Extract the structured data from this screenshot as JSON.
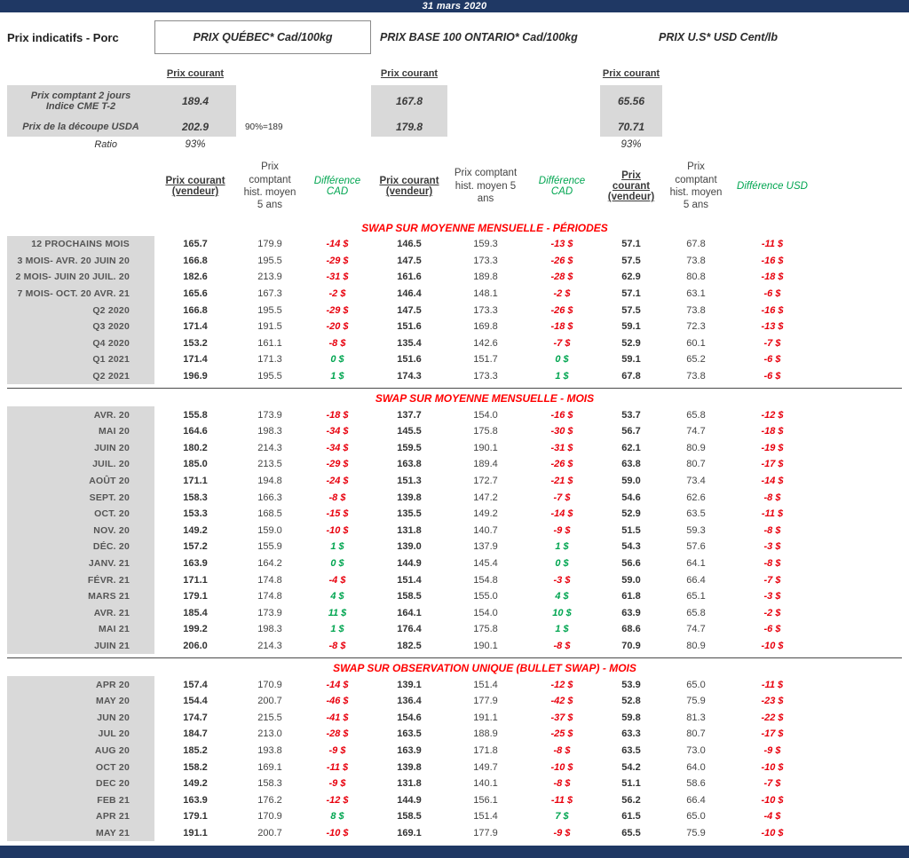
{
  "header": {
    "date": "31 mars 2020"
  },
  "title": "Prix indicatifs - Porc",
  "groups": [
    {
      "title": "PRIX QUÉBEC* Cad/100kg"
    },
    {
      "title": "PRIX BASE 100 ONTARIO* Cad/100kg"
    },
    {
      "title": "PRIX U.S* USD Cent/lb"
    }
  ],
  "labels": {
    "prix_courant": "Prix courant",
    "col_vendeur": "Prix courant (vendeur)",
    "col_hist": "Prix comptant hist. moyen 5 ans",
    "col_diff_cad": "Différence CAD",
    "col_diff_usd": "Différence USD"
  },
  "spot": {
    "rows": [
      {
        "label_line1": "Prix comptant 2 jours",
        "label_line2": "Indice CME T-2",
        "qc": "189.4",
        "on": "167.8",
        "us": "65.56"
      },
      {
        "label": "Prix de la découpe USDA",
        "qc": "202.9",
        "note": "90%=189",
        "on": "179.8",
        "us": "70.71"
      },
      {
        "label": "Ratio",
        "qc": "93%",
        "us": "93%"
      }
    ]
  },
  "colors": {
    "navy_bar": "#1F3864",
    "negative_red": "#E8000D",
    "positive_green": "#00A550",
    "section_title_red": "#FF0000",
    "cell_gray": "#D9D9D9"
  },
  "sections": [
    {
      "title": "SWAP SUR MOYENNE MENSUELLE - PÉRIODES",
      "divider": false,
      "rows": [
        {
          "label": "12 PROCHAINS MOIS",
          "values": [
            "165.7",
            "179.9",
            "-14 $",
            "146.5",
            "159.3",
            "-13 $",
            "57.1",
            "67.8",
            "-11 $"
          ]
        },
        {
          "label": "3 MOIS- AVR. 20 JUIN 20",
          "values": [
            "166.8",
            "195.5",
            "-29 $",
            "147.5",
            "173.3",
            "-26 $",
            "57.5",
            "73.8",
            "-16 $"
          ]
        },
        {
          "label": "2 MOIS- JUIN 20 JUIL. 20",
          "values": [
            "182.6",
            "213.9",
            "-31 $",
            "161.6",
            "189.8",
            "-28 $",
            "62.9",
            "80.8",
            "-18 $"
          ]
        },
        {
          "label": "7 MOIS- OCT. 20 AVR. 21",
          "values": [
            "165.6",
            "167.3",
            "-2 $",
            "146.4",
            "148.1",
            "-2 $",
            "57.1",
            "63.1",
            "-6 $"
          ]
        },
        {
          "label": "Q2 2020",
          "values": [
            "166.8",
            "195.5",
            "-29 $",
            "147.5",
            "173.3",
            "-26 $",
            "57.5",
            "73.8",
            "-16 $"
          ]
        },
        {
          "label": "Q3 2020",
          "values": [
            "171.4",
            "191.5",
            "-20 $",
            "151.6",
            "169.8",
            "-18 $",
            "59.1",
            "72.3",
            "-13 $"
          ]
        },
        {
          "label": "Q4 2020",
          "values": [
            "153.2",
            "161.1",
            "-8 $",
            "135.4",
            "142.6",
            "-7 $",
            "52.9",
            "60.1",
            "-7 $"
          ]
        },
        {
          "label": "Q1 2021",
          "values": [
            "171.4",
            "171.3",
            "0 $",
            "151.6",
            "151.7",
            "0 $",
            "59.1",
            "65.2",
            "-6 $"
          ]
        },
        {
          "label": "Q2 2021",
          "values": [
            "196.9",
            "195.5",
            "1 $",
            "174.3",
            "173.3",
            "1 $",
            "67.8",
            "73.8",
            "-6 $"
          ]
        }
      ]
    },
    {
      "title": "SWAP SUR MOYENNE MENSUELLE - MOIS",
      "divider": true,
      "rows": [
        {
          "label": "AVR. 20",
          "values": [
            "155.8",
            "173.9",
            "-18 $",
            "137.7",
            "154.0",
            "-16 $",
            "53.7",
            "65.8",
            "-12 $"
          ]
        },
        {
          "label": "MAI 20",
          "values": [
            "164.6",
            "198.3",
            "-34 $",
            "145.5",
            "175.8",
            "-30 $",
            "56.7",
            "74.7",
            "-18 $"
          ]
        },
        {
          "label": "JUIN 20",
          "values": [
            "180.2",
            "214.3",
            "-34 $",
            "159.5",
            "190.1",
            "-31 $",
            "62.1",
            "80.9",
            "-19 $"
          ]
        },
        {
          "label": "JUIL. 20",
          "values": [
            "185.0",
            "213.5",
            "-29 $",
            "163.8",
            "189.4",
            "-26 $",
            "63.8",
            "80.7",
            "-17 $"
          ]
        },
        {
          "label": "AOÛT 20",
          "values": [
            "171.1",
            "194.8",
            "-24 $",
            "151.3",
            "172.7",
            "-21 $",
            "59.0",
            "73.4",
            "-14 $"
          ]
        },
        {
          "label": "SEPT. 20",
          "values": [
            "158.3",
            "166.3",
            "-8 $",
            "139.8",
            "147.2",
            "-7 $",
            "54.6",
            "62.6",
            "-8 $"
          ]
        },
        {
          "label": "OCT. 20",
          "values": [
            "153.3",
            "168.5",
            "-15 $",
            "135.5",
            "149.2",
            "-14 $",
            "52.9",
            "63.5",
            "-11 $"
          ]
        },
        {
          "label": "NOV. 20",
          "values": [
            "149.2",
            "159.0",
            "-10 $",
            "131.8",
            "140.7",
            "-9 $",
            "51.5",
            "59.3",
            "-8 $"
          ]
        },
        {
          "label": "DÉC. 20",
          "values": [
            "157.2",
            "155.9",
            "1 $",
            "139.0",
            "137.9",
            "1 $",
            "54.3",
            "57.6",
            "-3 $"
          ]
        },
        {
          "label": "JANV. 21",
          "values": [
            "163.9",
            "164.2",
            "0 $",
            "144.9",
            "145.4",
            "0 $",
            "56.6",
            "64.1",
            "-8 $"
          ]
        },
        {
          "label": "FÉVR. 21",
          "values": [
            "171.1",
            "174.8",
            "-4 $",
            "151.4",
            "154.8",
            "-3 $",
            "59.0",
            "66.4",
            "-7 $"
          ]
        },
        {
          "label": "MARS 21",
          "values": [
            "179.1",
            "174.8",
            "4 $",
            "158.5",
            "155.0",
            "4 $",
            "61.8",
            "65.1",
            "-3 $"
          ]
        },
        {
          "label": "AVR. 21",
          "values": [
            "185.4",
            "173.9",
            "11 $",
            "164.1",
            "154.0",
            "10 $",
            "63.9",
            "65.8",
            "-2 $"
          ]
        },
        {
          "label": "MAI 21",
          "values": [
            "199.2",
            "198.3",
            "1 $",
            "176.4",
            "175.8",
            "1 $",
            "68.6",
            "74.7",
            "-6 $"
          ]
        },
        {
          "label": "JUIN 21",
          "values": [
            "206.0",
            "214.3",
            "-8 $",
            "182.5",
            "190.1",
            "-8 $",
            "70.9",
            "80.9",
            "-10 $"
          ]
        }
      ]
    },
    {
      "title": "SWAP SUR OBSERVATION UNIQUE (BULLET SWAP) - MOIS",
      "divider": true,
      "rows": [
        {
          "label": "APR 20",
          "values": [
            "157.4",
            "170.9",
            "-14 $",
            "139.1",
            "151.4",
            "-12 $",
            "53.9",
            "65.0",
            "-11 $"
          ]
        },
        {
          "label": "MAY 20",
          "values": [
            "154.4",
            "200.7",
            "-46 $",
            "136.4",
            "177.9",
            "-42 $",
            "52.8",
            "75.9",
            "-23 $"
          ]
        },
        {
          "label": "JUN 20",
          "values": [
            "174.7",
            "215.5",
            "-41 $",
            "154.6",
            "191.1",
            "-37 $",
            "59.8",
            "81.3",
            "-22 $"
          ]
        },
        {
          "label": "JUL 20",
          "values": [
            "184.7",
            "213.0",
            "-28 $",
            "163.5",
            "188.9",
            "-25 $",
            "63.3",
            "80.7",
            "-17 $"
          ]
        },
        {
          "label": "AUG 20",
          "values": [
            "185.2",
            "193.8",
            "-9 $",
            "163.9",
            "171.8",
            "-8 $",
            "63.5",
            "73.0",
            "-9 $"
          ]
        },
        {
          "label": "OCT 20",
          "values": [
            "158.2",
            "169.1",
            "-11 $",
            "139.8",
            "149.7",
            "-10 $",
            "54.2",
            "64.0",
            "-10 $"
          ]
        },
        {
          "label": "DEC 20",
          "values": [
            "149.2",
            "158.3",
            "-9 $",
            "131.8",
            "140.1",
            "-8 $",
            "51.1",
            "58.6",
            "-7 $"
          ]
        },
        {
          "label": "FEB 21",
          "values": [
            "163.9",
            "176.2",
            "-12 $",
            "144.9",
            "156.1",
            "-11 $",
            "56.2",
            "66.4",
            "-10 $"
          ]
        },
        {
          "label": "APR 21",
          "values": [
            "179.1",
            "170.9",
            "8 $",
            "158.5",
            "151.4",
            "7 $",
            "61.5",
            "65.0",
            "-4 $"
          ]
        },
        {
          "label": "MAY 21",
          "values": [
            "191.1",
            "200.7",
            "-10 $",
            "169.1",
            "177.9",
            "-9 $",
            "65.5",
            "75.9",
            "-10 $"
          ]
        }
      ]
    }
  ]
}
